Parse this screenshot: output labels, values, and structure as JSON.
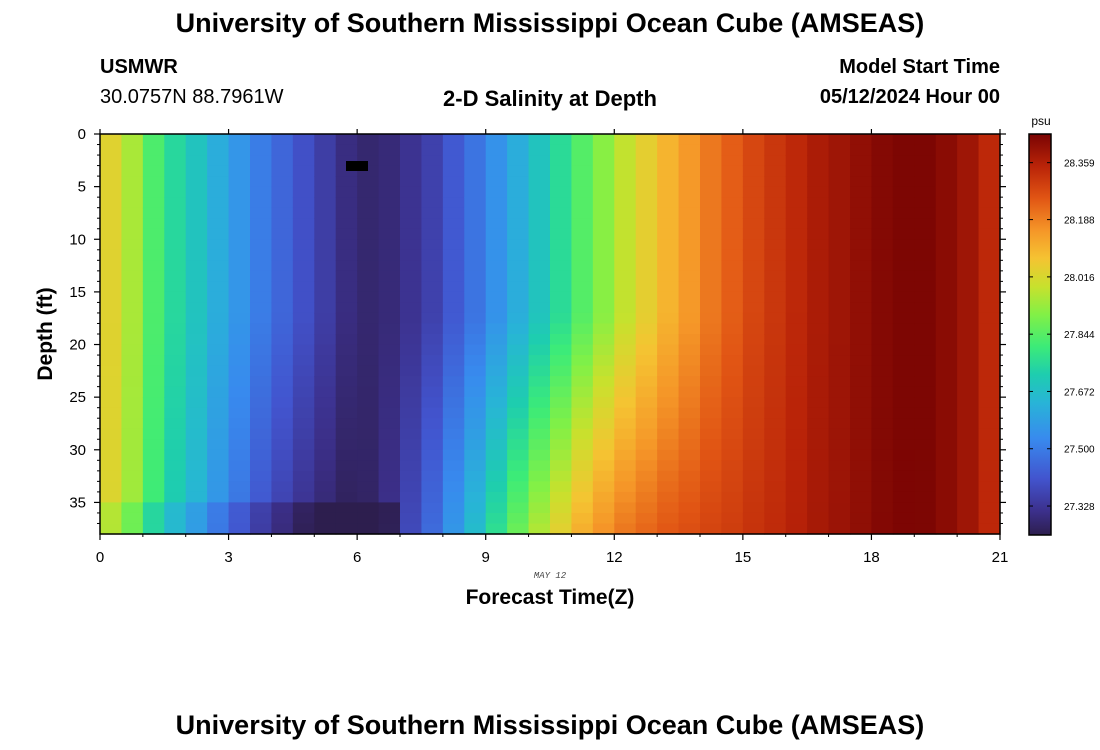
{
  "header": {
    "title": "University of Southern Mississippi Ocean Cube (AMSEAS)",
    "station": "USMWR",
    "coords": "30.0757N  88.7961W",
    "subtitle": "2-D Salinity at Depth",
    "model_start_label": "Model Start Time",
    "model_start_value": "05/12/2024 Hour 00"
  },
  "footer": {
    "title": "University of Southern Mississippi Ocean Cube (AMSEAS)"
  },
  "chart_data": {
    "type": "heatmap",
    "title": "2-D Salinity at Depth",
    "xlabel": "Forecast Time(Z)",
    "ylabel": "Depth (ft)",
    "date_label": "MAY 12",
    "xlim": [
      0,
      21
    ],
    "ylim": [
      38,
      0
    ],
    "x_ticks": [
      0,
      3,
      6,
      9,
      12,
      15,
      18,
      21
    ],
    "y_ticks": [
      0,
      5,
      10,
      15,
      20,
      25,
      30,
      35
    ],
    "x_step_hours": 0.5,
    "depth_max_ft": 38,
    "colorbar": {
      "unit": "psu",
      "min": 27.241,
      "max": 28.445,
      "tick_values": [
        28.359,
        28.188,
        28.016,
        27.844,
        27.672,
        27.5,
        27.328
      ],
      "tick_labels": [
        "28.359",
        "28.188",
        "28.016",
        "27.844",
        "27.672",
        "27.500",
        "27.328"
      ]
    },
    "surface_salinity_series": {
      "hours": [
        0,
        0.5,
        1,
        1.5,
        2,
        2.5,
        3,
        3.5,
        4,
        4.5,
        5,
        5.5,
        6,
        6.5,
        7,
        7.5,
        8,
        8.5,
        9,
        9.5,
        10,
        10.5,
        11,
        11.5,
        12,
        12.5,
        13,
        13.5,
        14,
        14.5,
        15,
        15.5,
        16,
        16.5,
        17,
        17.5,
        18,
        18.5,
        19,
        19.5,
        20,
        20.5
      ],
      "values": [
        28.03,
        27.95,
        27.83,
        27.75,
        27.69,
        27.62,
        27.56,
        27.5,
        27.45,
        27.4,
        27.35,
        27.3,
        27.28,
        27.29,
        27.32,
        27.36,
        27.42,
        27.48,
        27.55,
        27.62,
        27.69,
        27.76,
        27.84,
        27.91,
        27.98,
        28.04,
        28.1,
        28.15,
        28.2,
        28.24,
        28.28,
        28.31,
        28.34,
        28.37,
        28.39,
        28.41,
        28.43,
        28.44,
        28.44,
        28.42,
        28.39,
        28.34
      ]
    },
    "colors": {
      "min": "#2d1e4e",
      "max": "#7a0403"
    }
  }
}
